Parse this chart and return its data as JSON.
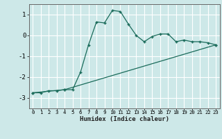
{
  "xlabel": "Humidex (Indice chaleur)",
  "background_color": "#cde8e8",
  "grid_color": "#b8d8d8",
  "line_color": "#1a6b5a",
  "ylim": [
    -3.5,
    1.5
  ],
  "xlim": [
    -0.5,
    23.5
  ],
  "yticks": [
    -3,
    -2,
    -1,
    0,
    1
  ],
  "xticks": [
    0,
    1,
    2,
    3,
    4,
    5,
    6,
    7,
    8,
    9,
    10,
    11,
    12,
    13,
    14,
    15,
    16,
    17,
    18,
    19,
    20,
    21,
    22,
    23
  ],
  "curve1_x": [
    0,
    1,
    2,
    3,
    4,
    5,
    6,
    7,
    8,
    9,
    10,
    11,
    12,
    13,
    14,
    15,
    16,
    17,
    18,
    19,
    20,
    21,
    22,
    23
  ],
  "curve1_y": [
    -2.75,
    -2.75,
    -2.65,
    -2.65,
    -2.6,
    -2.6,
    -1.75,
    -0.45,
    0.65,
    0.6,
    1.2,
    1.15,
    0.55,
    0.0,
    -0.3,
    -0.05,
    0.07,
    0.07,
    -0.3,
    -0.22,
    -0.3,
    -0.3,
    -0.35,
    -0.45
  ],
  "curve2_x": [
    0,
    4,
    23
  ],
  "curve2_y": [
    -2.75,
    -2.6,
    -0.45
  ]
}
